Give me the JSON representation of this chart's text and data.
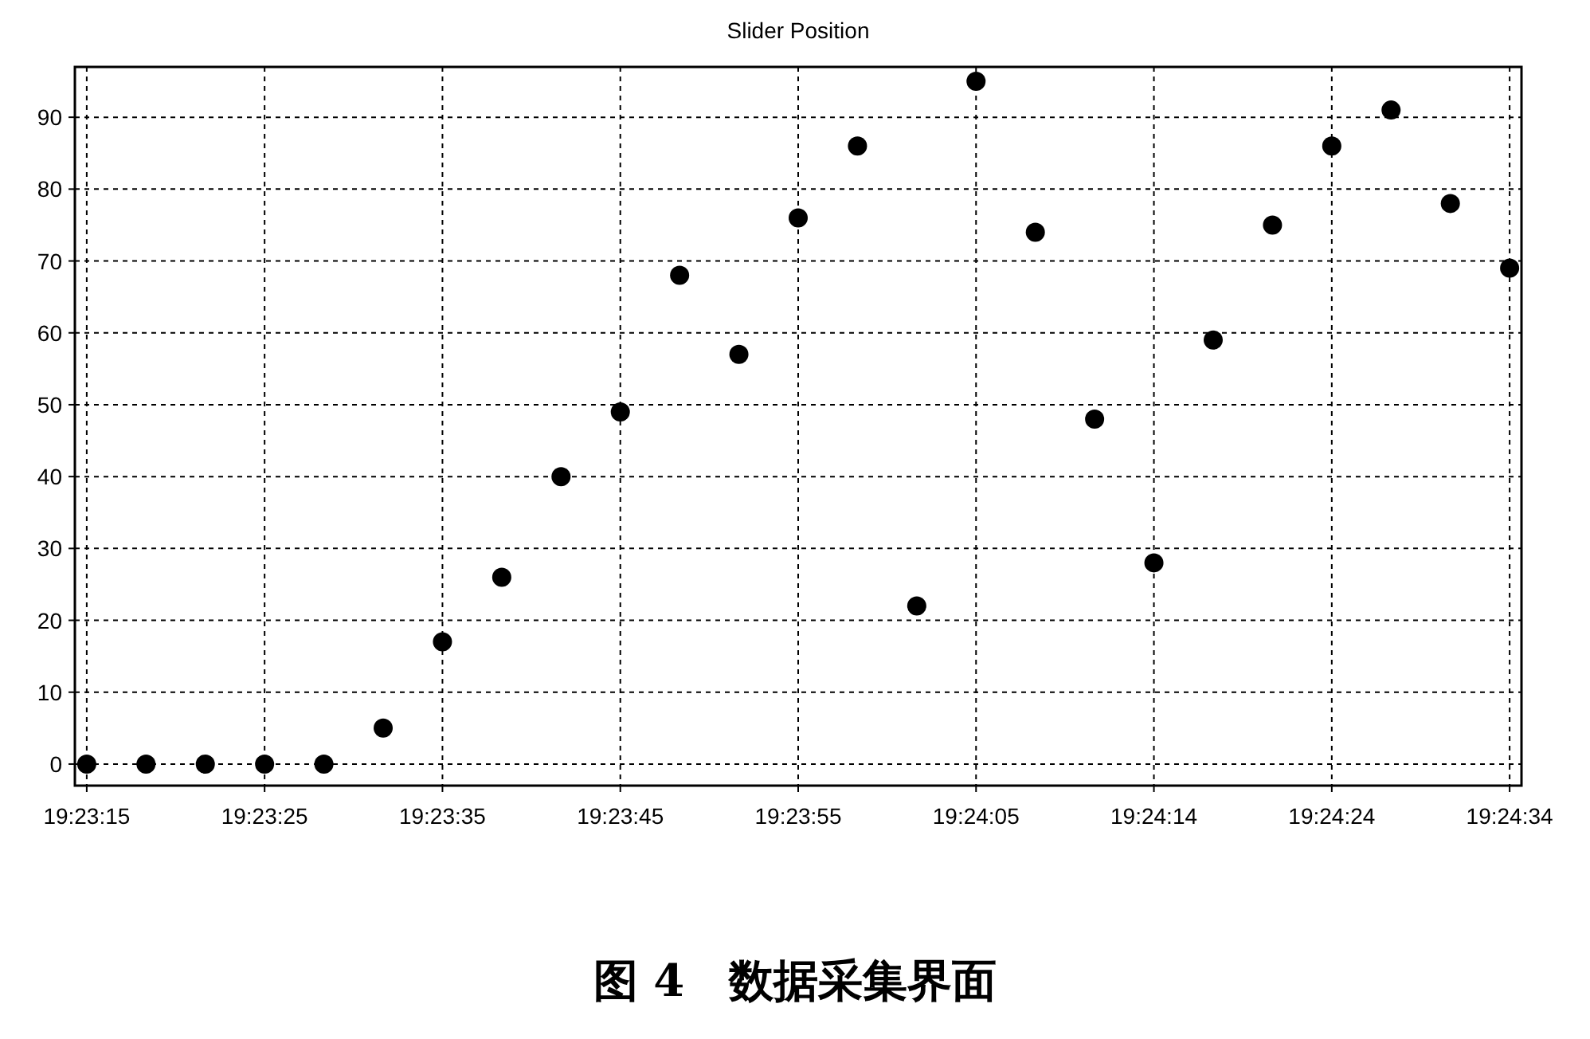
{
  "chart_data": {
    "type": "scatter",
    "title": "Slider Position",
    "categories": [
      "19:23:15",
      null,
      null,
      "19:23:25",
      null,
      null,
      "19:23:35",
      null,
      null,
      "19:23:45",
      null,
      null,
      "19:23:55",
      null,
      null,
      "19:24:05",
      null,
      null,
      "19:24:14",
      null,
      null,
      "19:24:24",
      null,
      null,
      "19:24:34"
    ],
    "values": [
      0,
      0,
      0,
      0,
      0,
      5,
      17,
      26,
      40,
      49,
      68,
      57,
      76,
      86,
      22,
      95,
      74,
      48,
      28,
      59,
      75,
      86,
      91,
      78,
      69
    ],
    "color": "#000000",
    "marker": "circle",
    "grid": true,
    "ylim": [
      -3,
      97
    ],
    "yticks": [
      0,
      10,
      20,
      30,
      40,
      50,
      60,
      70,
      80,
      90
    ],
    "annotations": [
      "图 4　数据采集界面"
    ]
  }
}
